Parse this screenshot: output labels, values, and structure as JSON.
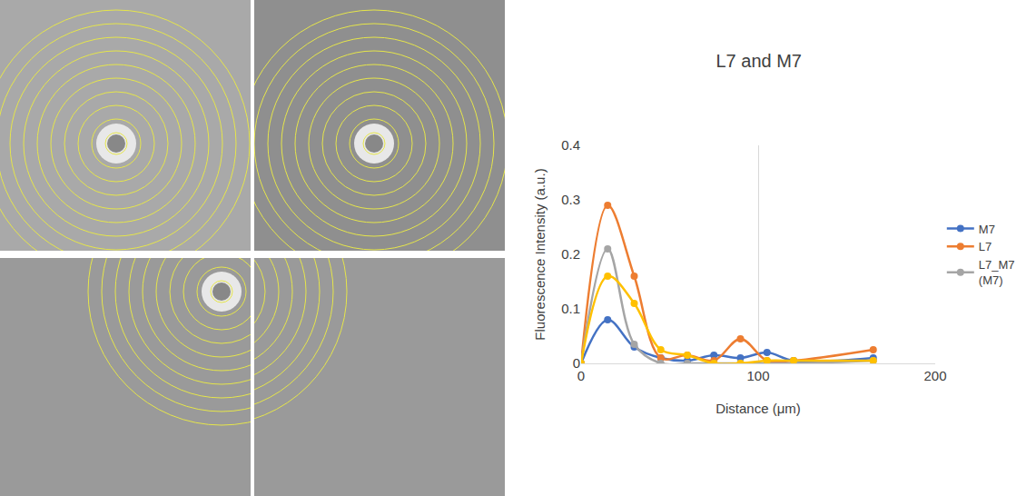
{
  "chart_data": {
    "type": "line",
    "title": "L7 and M7",
    "x_label": "Distance (μm)",
    "y_label": "Fluorescence Intensity (a.u.)",
    "x": [
      0,
      15,
      30,
      45,
      60,
      75,
      90,
      105,
      120,
      165
    ],
    "series": [
      {
        "name": "M7",
        "color": "#4472c4",
        "values": [
          0,
          0.08,
          0.03,
          0.01,
          0.005,
          0.015,
          0.01,
          0.02,
          0.005,
          0.01
        ]
      },
      {
        "name": "L7",
        "color": "#ed7d31",
        "values": [
          0,
          0.29,
          0.16,
          0.01,
          0.015,
          0.005,
          0.045,
          0.005,
          0.005,
          0.025
        ]
      },
      {
        "name": "L7_M7 (M7)",
        "color": "#a5a5a5",
        "values": [
          0,
          0.21,
          0.035,
          0,
          0,
          0,
          0,
          0,
          0,
          0.005
        ]
      },
      {
        "color": "#ffc000",
        "values": [
          0,
          0.16,
          0.11,
          0.025,
          0.015,
          0,
          0,
          0.005,
          0.005,
          0.005
        ]
      }
    ],
    "xlim": [
      0,
      200
    ],
    "xticks": [
      0,
      100,
      200
    ],
    "ylim": [
      0,
      0.4
    ],
    "yticks": [
      0,
      0.1,
      0.2,
      0.3,
      0.4
    ],
    "grid": "x",
    "legend": "right",
    "marker": "circle",
    "line_style": "spline"
  }
}
